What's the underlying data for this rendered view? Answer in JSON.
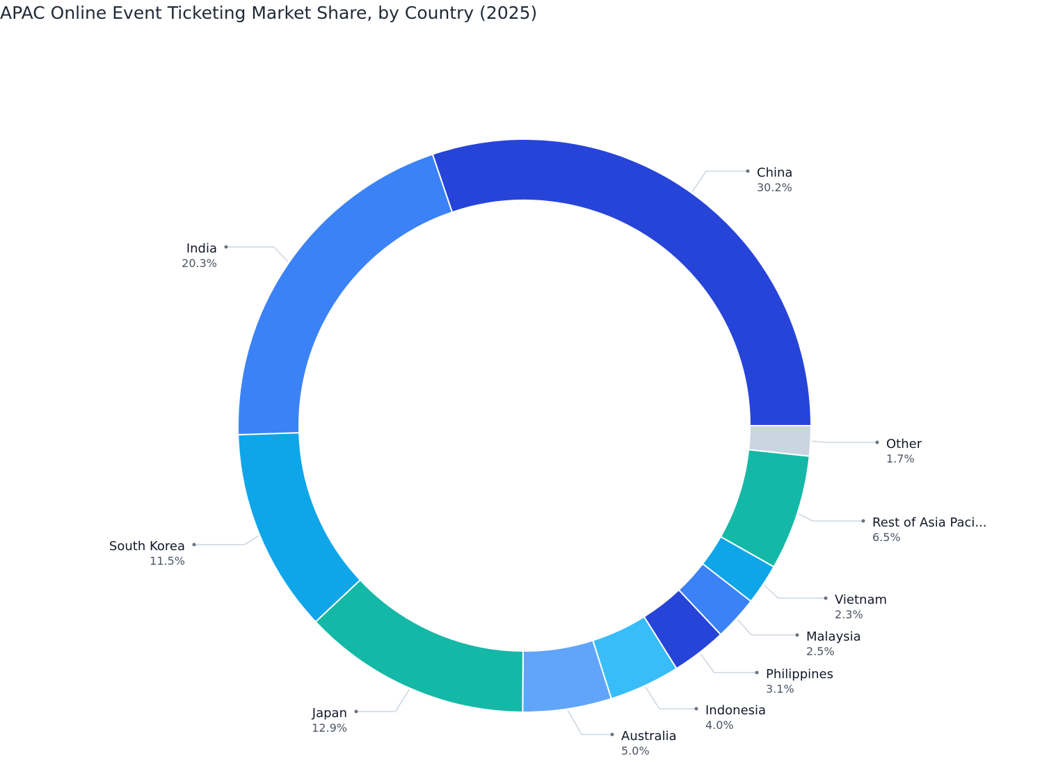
{
  "chart_data": {
    "type": "donut",
    "title": "APAC Online Event Ticketing Market Share, by Country (2025)",
    "categories": [
      "China",
      "Other",
      "Rest of Asia Paci...",
      "Vietnam",
      "Malaysia",
      "Philippines",
      "Indonesia",
      "Australia",
      "Japan",
      "South Korea",
      "India"
    ],
    "values": [
      30.2,
      1.7,
      6.5,
      2.3,
      2.5,
      3.1,
      4.0,
      5.0,
      12.9,
      11.5,
      20.3
    ],
    "value_labels": [
      "30.2%",
      "1.7%",
      "6.5%",
      "2.3%",
      "2.5%",
      "3.1%",
      "4.0%",
      "5.0%",
      "12.9%",
      "11.5%",
      "20.3%"
    ],
    "colors": [
      "#2744d9",
      "#cbd5e1",
      "#14b8a6",
      "#0ea5e9",
      "#3b82f6",
      "#2744d9",
      "#38bdf8",
      "#60a5fa",
      "#14b8a6",
      "#0ea5e9",
      "#3b82f6"
    ]
  }
}
